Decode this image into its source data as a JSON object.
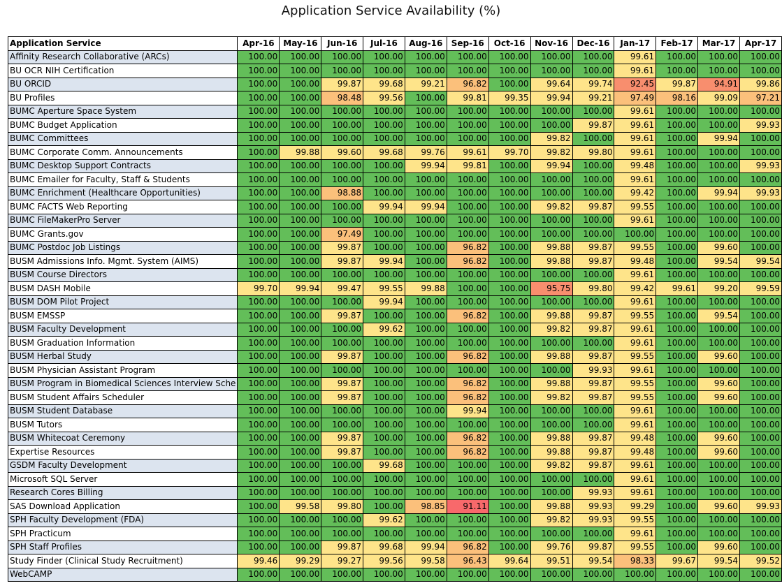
{
  "chart_data": {
    "type": "table",
    "title": "Application Service Availability (%)",
    "corner_header": "Application Service",
    "columns": [
      "Apr-16",
      "May-16",
      "Jun-16",
      "Jul-16",
      "Aug-16",
      "Sep-16",
      "Oct-16",
      "Nov-16",
      "Dec-16",
      "Jan-17",
      "Feb-17",
      "Mar-17",
      "Apr-17"
    ],
    "rows": [
      {
        "name": "Affinity Research Collaborative (ARCs)",
        "values": [
          "100.00",
          "100.00",
          "100.00",
          "100.00",
          "100.00",
          "100.00",
          "100.00",
          "100.00",
          "100.00",
          "99.61",
          "100.00",
          "100.00",
          "100.00"
        ]
      },
      {
        "name": "BU OCR NIH Certification",
        "values": [
          "100.00",
          "100.00",
          "100.00",
          "100.00",
          "100.00",
          "100.00",
          "100.00",
          "100.00",
          "100.00",
          "99.61",
          "100.00",
          "100.00",
          "100.00"
        ]
      },
      {
        "name": "BU ORCID",
        "values": [
          "100.00",
          "100.00",
          "99.87",
          "99.68",
          "99.21",
          "96.82",
          "100.00",
          "99.64",
          "99.74",
          "92.45",
          "99.87",
          "94.91",
          "99.86"
        ]
      },
      {
        "name": "BU Profiles",
        "values": [
          "100.00",
          "100.00",
          "98.48",
          "99.56",
          "100.00",
          "99.81",
          "99.35",
          "99.94",
          "99.21",
          "97.49",
          "98.16",
          "99.09",
          "97.21"
        ]
      },
      {
        "name": "BUMC Aperture Space System",
        "values": [
          "100.00",
          "100.00",
          "100.00",
          "100.00",
          "100.00",
          "100.00",
          "100.00",
          "100.00",
          "100.00",
          "99.61",
          "100.00",
          "100.00",
          "100.00"
        ]
      },
      {
        "name": "BUMC Budget Application",
        "values": [
          "100.00",
          "100.00",
          "100.00",
          "100.00",
          "100.00",
          "100.00",
          "100.00",
          "100.00",
          "99.87",
          "99.61",
          "100.00",
          "100.00",
          "99.93"
        ]
      },
      {
        "name": "BUMC Committees",
        "values": [
          "100.00",
          "100.00",
          "100.00",
          "100.00",
          "100.00",
          "100.00",
          "100.00",
          "99.82",
          "100.00",
          "99.61",
          "100.00",
          "99.94",
          "100.00"
        ]
      },
      {
        "name": "BUMC Corporate Comm. Announcements",
        "values": [
          "100.00",
          "99.88",
          "99.60",
          "99.68",
          "99.76",
          "99.61",
          "99.70",
          "99.82",
          "99.80",
          "99.61",
          "100.00",
          "100.00",
          "100.00"
        ]
      },
      {
        "name": "BUMC Desktop Support Contracts",
        "values": [
          "100.00",
          "100.00",
          "100.00",
          "100.00",
          "99.94",
          "99.81",
          "100.00",
          "99.94",
          "100.00",
          "99.48",
          "100.00",
          "100.00",
          "99.93"
        ]
      },
      {
        "name": "BUMC Emailer for Faculty, Staff & Students",
        "values": [
          "100.00",
          "100.00",
          "100.00",
          "100.00",
          "100.00",
          "100.00",
          "100.00",
          "100.00",
          "100.00",
          "99.61",
          "100.00",
          "100.00",
          "100.00"
        ]
      },
      {
        "name": "BUMC Enrichment (Healthcare Opportunities)",
        "values": [
          "100.00",
          "100.00",
          "98.88",
          "100.00",
          "100.00",
          "100.00",
          "100.00",
          "100.00",
          "100.00",
          "99.42",
          "100.00",
          "99.94",
          "99.93"
        ]
      },
      {
        "name": "BUMC FACTS Web Reporting",
        "values": [
          "100.00",
          "100.00",
          "100.00",
          "99.94",
          "99.94",
          "100.00",
          "100.00",
          "99.82",
          "99.87",
          "99.55",
          "100.00",
          "100.00",
          "100.00"
        ]
      },
      {
        "name": "BUMC FileMakerPro Server",
        "values": [
          "100.00",
          "100.00",
          "100.00",
          "100.00",
          "100.00",
          "100.00",
          "100.00",
          "100.00",
          "100.00",
          "99.61",
          "100.00",
          "100.00",
          "100.00"
        ]
      },
      {
        "name": "BUMC Grants.gov",
        "values": [
          "100.00",
          "100.00",
          "97.49",
          "100.00",
          "100.00",
          "100.00",
          "100.00",
          "100.00",
          "100.00",
          "100.00",
          "100.00",
          "100.00",
          "100.00"
        ]
      },
      {
        "name": "BUMC Postdoc Job Listings",
        "values": [
          "100.00",
          "100.00",
          "99.87",
          "100.00",
          "100.00",
          "96.82",
          "100.00",
          "99.88",
          "99.87",
          "99.55",
          "100.00",
          "99.60",
          "100.00"
        ]
      },
      {
        "name": "BUSM Admissions Info. Mgmt. System (AIMS)",
        "values": [
          "100.00",
          "100.00",
          "99.87",
          "99.94",
          "100.00",
          "96.82",
          "100.00",
          "99.88",
          "99.87",
          "99.48",
          "100.00",
          "99.54",
          "99.54"
        ]
      },
      {
        "name": "BUSM Course Directors",
        "values": [
          "100.00",
          "100.00",
          "100.00",
          "100.00",
          "100.00",
          "100.00",
          "100.00",
          "100.00",
          "100.00",
          "99.61",
          "100.00",
          "100.00",
          "100.00"
        ]
      },
      {
        "name": "BUSM DASH Mobile",
        "values": [
          "99.70",
          "99.94",
          "99.47",
          "99.55",
          "99.88",
          "100.00",
          "100.00",
          "95.75",
          "99.80",
          "99.42",
          "99.61",
          "99.20",
          "99.59"
        ]
      },
      {
        "name": "BUSM DOM Pilot Project",
        "values": [
          "100.00",
          "100.00",
          "100.00",
          "99.94",
          "100.00",
          "100.00",
          "100.00",
          "100.00",
          "100.00",
          "99.61",
          "100.00",
          "100.00",
          "100.00"
        ]
      },
      {
        "name": "BUSM EMSSP",
        "values": [
          "100.00",
          "100.00",
          "99.87",
          "100.00",
          "100.00",
          "96.82",
          "100.00",
          "99.88",
          "99.87",
          "99.55",
          "100.00",
          "99.54",
          "100.00"
        ]
      },
      {
        "name": "BUSM Faculty Development",
        "values": [
          "100.00",
          "100.00",
          "100.00",
          "99.62",
          "100.00",
          "100.00",
          "100.00",
          "99.82",
          "99.87",
          "99.61",
          "100.00",
          "100.00",
          "100.00"
        ]
      },
      {
        "name": "BUSM Graduation Information",
        "values": [
          "100.00",
          "100.00",
          "100.00",
          "100.00",
          "100.00",
          "100.00",
          "100.00",
          "100.00",
          "100.00",
          "99.61",
          "100.00",
          "100.00",
          "100.00"
        ]
      },
      {
        "name": "BUSM Herbal Study",
        "values": [
          "100.00",
          "100.00",
          "99.87",
          "100.00",
          "100.00",
          "96.82",
          "100.00",
          "99.88",
          "99.87",
          "99.55",
          "100.00",
          "99.60",
          "100.00"
        ]
      },
      {
        "name": "BUSM Physician Assistant Program",
        "values": [
          "100.00",
          "100.00",
          "100.00",
          "100.00",
          "100.00",
          "100.00",
          "100.00",
          "100.00",
          "99.93",
          "99.61",
          "100.00",
          "100.00",
          "100.00"
        ]
      },
      {
        "name": "BUSM Program in Biomedical Sciences Interview Sche",
        "values": [
          "100.00",
          "100.00",
          "99.87",
          "100.00",
          "100.00",
          "96.82",
          "100.00",
          "99.88",
          "99.87",
          "99.55",
          "100.00",
          "99.60",
          "100.00"
        ]
      },
      {
        "name": "BUSM Student Affairs Scheduler",
        "values": [
          "100.00",
          "100.00",
          "99.87",
          "100.00",
          "100.00",
          "96.82",
          "100.00",
          "99.82",
          "99.87",
          "99.55",
          "100.00",
          "99.60",
          "100.00"
        ]
      },
      {
        "name": "BUSM Student Database",
        "values": [
          "100.00",
          "100.00",
          "100.00",
          "100.00",
          "100.00",
          "99.94",
          "100.00",
          "100.00",
          "100.00",
          "99.61",
          "100.00",
          "100.00",
          "100.00"
        ]
      },
      {
        "name": "BUSM Tutors",
        "values": [
          "100.00",
          "100.00",
          "100.00",
          "100.00",
          "100.00",
          "100.00",
          "100.00",
          "100.00",
          "100.00",
          "99.61",
          "100.00",
          "100.00",
          "100.00"
        ]
      },
      {
        "name": "BUSM Whitecoat Ceremony",
        "values": [
          "100.00",
          "100.00",
          "99.87",
          "100.00",
          "100.00",
          "96.82",
          "100.00",
          "99.88",
          "99.87",
          "99.48",
          "100.00",
          "99.60",
          "100.00"
        ]
      },
      {
        "name": "Expertise Resources",
        "values": [
          "100.00",
          "100.00",
          "99.87",
          "100.00",
          "100.00",
          "96.82",
          "100.00",
          "99.88",
          "99.87",
          "99.48",
          "100.00",
          "99.60",
          "100.00"
        ]
      },
      {
        "name": "GSDM Faculty Development",
        "values": [
          "100.00",
          "100.00",
          "100.00",
          "99.68",
          "100.00",
          "100.00",
          "100.00",
          "99.82",
          "99.87",
          "99.61",
          "100.00",
          "100.00",
          "100.00"
        ]
      },
      {
        "name": "Microsoft SQL Server",
        "values": [
          "100.00",
          "100.00",
          "100.00",
          "100.00",
          "100.00",
          "100.00",
          "100.00",
          "100.00",
          "100.00",
          "99.61",
          "100.00",
          "100.00",
          "100.00"
        ]
      },
      {
        "name": "Research Cores Billing",
        "values": [
          "100.00",
          "100.00",
          "100.00",
          "100.00",
          "100.00",
          "100.00",
          "100.00",
          "100.00",
          "99.93",
          "99.61",
          "100.00",
          "100.00",
          "100.00"
        ]
      },
      {
        "name": "SAS Download Application",
        "values": [
          "100.00",
          "99.58",
          "99.80",
          "100.00",
          "98.85",
          "91.11",
          "100.00",
          "99.88",
          "99.93",
          "99.29",
          "100.00",
          "99.60",
          "99.93"
        ]
      },
      {
        "name": "SPH Faculty Development (FDA)",
        "values": [
          "100.00",
          "100.00",
          "100.00",
          "99.62",
          "100.00",
          "100.00",
          "100.00",
          "99.82",
          "99.93",
          "99.55",
          "100.00",
          "100.00",
          "100.00"
        ]
      },
      {
        "name": "SPH Practicum",
        "values": [
          "100.00",
          "100.00",
          "100.00",
          "100.00",
          "100.00",
          "100.00",
          "100.00",
          "100.00",
          "100.00",
          "99.61",
          "100.00",
          "100.00",
          "100.00"
        ]
      },
      {
        "name": "SPH Staff Profiles",
        "values": [
          "100.00",
          "100.00",
          "99.87",
          "99.68",
          "99.94",
          "96.82",
          "100.00",
          "99.76",
          "99.87",
          "99.55",
          "100.00",
          "99.60",
          "100.00"
        ]
      },
      {
        "name": "Study Finder (Clinical Study Recruitment)",
        "values": [
          "99.46",
          "99.29",
          "99.27",
          "99.56",
          "99.58",
          "96.43",
          "99.64",
          "99.51",
          "99.54",
          "98.33",
          "99.67",
          "99.54",
          "99.52"
        ]
      },
      {
        "name": "WebCAMP",
        "values": [
          "100.00",
          "100.00",
          "100.00",
          "100.00",
          "100.00",
          "100.00",
          "100.00",
          "100.00",
          "100.00",
          "100.00",
          "100.00",
          "100.00",
          "100.00"
        ]
      }
    ],
    "colors": {
      "full": "#63be59",
      "high": "#fee48a",
      "mid": "#fbc07b",
      "low": "#f88e6e",
      "lowest": "#f8696b",
      "stripe": "#dce4ef"
    }
  }
}
